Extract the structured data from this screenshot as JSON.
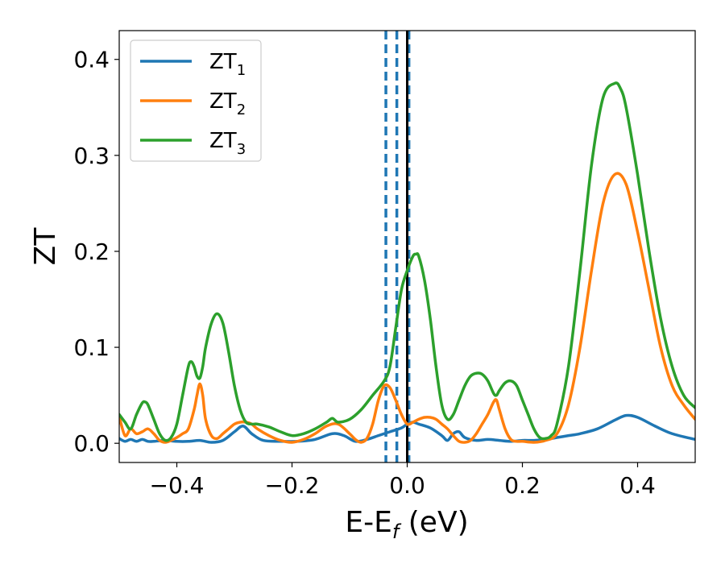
{
  "chart_data": {
    "type": "line",
    "xlabel": "E-E",
    "xlabel_sub": "f",
    "xlabel_unit": " (eV)",
    "ylabel": "ZT",
    "xlim": [
      -0.5,
      0.5
    ],
    "ylim": [
      -0.02,
      0.43
    ],
    "x_ticks": [
      -0.4,
      -0.2,
      0.0,
      0.2,
      0.4
    ],
    "x_tick_labels": [
      "−0.4",
      "−0.2",
      "0.0",
      "0.2",
      "0.4"
    ],
    "y_ticks": [
      0.0,
      0.1,
      0.2,
      0.3,
      0.4
    ],
    "y_tick_labels": [
      "0.0",
      "0.1",
      "0.2",
      "0.3",
      "0.4"
    ],
    "grid": false,
    "legend_position": "top-left",
    "series": [
      {
        "name": "ZT",
        "name_sub": "1",
        "color": "#1f77b4",
        "x": [
          -0.5,
          -0.49,
          -0.48,
          -0.47,
          -0.46,
          -0.45,
          -0.44,
          -0.42,
          -0.4,
          -0.38,
          -0.36,
          -0.34,
          -0.32,
          -0.3,
          -0.285,
          -0.27,
          -0.25,
          -0.22,
          -0.19,
          -0.16,
          -0.13,
          -0.11,
          -0.09,
          -0.07,
          -0.05,
          -0.03,
          -0.01,
          0.0,
          0.01,
          0.02,
          0.04,
          0.06,
          0.07,
          0.08,
          0.09,
          0.1,
          0.12,
          0.14,
          0.16,
          0.18,
          0.2,
          0.22,
          0.24,
          0.26,
          0.28,
          0.3,
          0.33,
          0.36,
          0.38,
          0.4,
          0.43,
          0.46,
          0.5
        ],
        "y": [
          0.005,
          0.002,
          0.004,
          0.002,
          0.004,
          0.002,
          0.002,
          0.003,
          0.002,
          0.002,
          0.003,
          0.001,
          0.003,
          0.012,
          0.018,
          0.01,
          0.003,
          0.002,
          0.002,
          0.004,
          0.01,
          0.008,
          0.002,
          0.004,
          0.008,
          0.012,
          0.016,
          0.02,
          0.022,
          0.02,
          0.016,
          0.008,
          0.003,
          0.01,
          0.012,
          0.006,
          0.003,
          0.004,
          0.003,
          0.002,
          0.003,
          0.003,
          0.004,
          0.006,
          0.008,
          0.01,
          0.015,
          0.024,
          0.029,
          0.027,
          0.018,
          0.01,
          0.004
        ]
      },
      {
        "name": "ZT",
        "name_sub": "2",
        "color": "#ff7f0e",
        "x": [
          -0.5,
          -0.49,
          -0.48,
          -0.47,
          -0.46,
          -0.45,
          -0.44,
          -0.43,
          -0.42,
          -0.41,
          -0.4,
          -0.39,
          -0.38,
          -0.37,
          -0.365,
          -0.36,
          -0.355,
          -0.35,
          -0.34,
          -0.33,
          -0.32,
          -0.31,
          -0.3,
          -0.29,
          -0.28,
          -0.27,
          -0.26,
          -0.24,
          -0.22,
          -0.2,
          -0.18,
          -0.16,
          -0.14,
          -0.12,
          -0.1,
          -0.09,
          -0.08,
          -0.07,
          -0.06,
          -0.05,
          -0.04,
          -0.03,
          -0.02,
          -0.01,
          0.0,
          0.01,
          0.02,
          0.03,
          0.04,
          0.05,
          0.06,
          0.07,
          0.08,
          0.09,
          0.1,
          0.11,
          0.12,
          0.13,
          0.14,
          0.15,
          0.155,
          0.16,
          0.17,
          0.18,
          0.19,
          0.2,
          0.22,
          0.24,
          0.26,
          0.28,
          0.3,
          0.32,
          0.34,
          0.36,
          0.38,
          0.4,
          0.42,
          0.44,
          0.46,
          0.48,
          0.5
        ],
        "y": [
          0.028,
          0.008,
          0.015,
          0.01,
          0.012,
          0.015,
          0.01,
          0.003,
          0.001,
          0.003,
          0.006,
          0.01,
          0.015,
          0.035,
          0.05,
          0.062,
          0.05,
          0.025,
          0.008,
          0.005,
          0.01,
          0.015,
          0.02,
          0.022,
          0.022,
          0.02,
          0.015,
          0.008,
          0.003,
          0.001,
          0.004,
          0.01,
          0.018,
          0.02,
          0.01,
          0.004,
          0.001,
          0.005,
          0.02,
          0.045,
          0.06,
          0.058,
          0.045,
          0.03,
          0.02,
          0.022,
          0.025,
          0.027,
          0.027,
          0.025,
          0.02,
          0.015,
          0.008,
          0.002,
          0.001,
          0.003,
          0.01,
          0.02,
          0.03,
          0.043,
          0.045,
          0.035,
          0.015,
          0.004,
          0.002,
          0.002,
          0.001,
          0.003,
          0.01,
          0.04,
          0.1,
          0.18,
          0.25,
          0.28,
          0.27,
          0.22,
          0.16,
          0.1,
          0.06,
          0.04,
          0.025
        ]
      },
      {
        "name": "ZT",
        "name_sub": "3",
        "color": "#2ca02c",
        "x": [
          -0.5,
          -0.49,
          -0.48,
          -0.47,
          -0.46,
          -0.455,
          -0.45,
          -0.44,
          -0.43,
          -0.42,
          -0.41,
          -0.4,
          -0.39,
          -0.38,
          -0.375,
          -0.37,
          -0.365,
          -0.36,
          -0.355,
          -0.35,
          -0.34,
          -0.33,
          -0.32,
          -0.31,
          -0.3,
          -0.29,
          -0.28,
          -0.27,
          -0.26,
          -0.24,
          -0.22,
          -0.2,
          -0.18,
          -0.16,
          -0.14,
          -0.13,
          -0.12,
          -0.1,
          -0.08,
          -0.06,
          -0.04,
          -0.03,
          -0.02,
          -0.01,
          0.0,
          0.01,
          0.015,
          0.02,
          0.03,
          0.04,
          0.05,
          0.06,
          0.07,
          0.08,
          0.09,
          0.1,
          0.11,
          0.12,
          0.13,
          0.14,
          0.15,
          0.155,
          0.16,
          0.17,
          0.18,
          0.19,
          0.2,
          0.21,
          0.22,
          0.23,
          0.24,
          0.25,
          0.26,
          0.28,
          0.3,
          0.32,
          0.34,
          0.36,
          0.37,
          0.38,
          0.4,
          0.42,
          0.44,
          0.46,
          0.48,
          0.5
        ],
        "y": [
          0.03,
          0.022,
          0.015,
          0.03,
          0.042,
          0.043,
          0.04,
          0.025,
          0.01,
          0.003,
          0.006,
          0.02,
          0.05,
          0.08,
          0.085,
          0.08,
          0.07,
          0.068,
          0.08,
          0.1,
          0.125,
          0.135,
          0.125,
          0.095,
          0.06,
          0.035,
          0.022,
          0.02,
          0.02,
          0.017,
          0.012,
          0.008,
          0.01,
          0.015,
          0.022,
          0.026,
          0.022,
          0.025,
          0.035,
          0.05,
          0.065,
          0.08,
          0.12,
          0.16,
          0.18,
          0.195,
          0.197,
          0.195,
          0.17,
          0.13,
          0.08,
          0.04,
          0.025,
          0.03,
          0.045,
          0.06,
          0.07,
          0.073,
          0.072,
          0.065,
          0.052,
          0.05,
          0.055,
          0.063,
          0.065,
          0.06,
          0.045,
          0.03,
          0.015,
          0.006,
          0.005,
          0.008,
          0.02,
          0.08,
          0.18,
          0.29,
          0.36,
          0.375,
          0.37,
          0.35,
          0.28,
          0.2,
          0.13,
          0.08,
          0.05,
          0.037
        ]
      }
    ],
    "vertical_lines": [
      {
        "x": -0.037,
        "color": "#1f77b4",
        "style": "dashed"
      },
      {
        "x": -0.018,
        "color": "#1f77b4",
        "style": "dashed"
      },
      {
        "x": 0.003,
        "color": "#1f77b4",
        "style": "dashed"
      },
      {
        "x": 0.0,
        "color": "#000000",
        "style": "solid"
      }
    ]
  }
}
